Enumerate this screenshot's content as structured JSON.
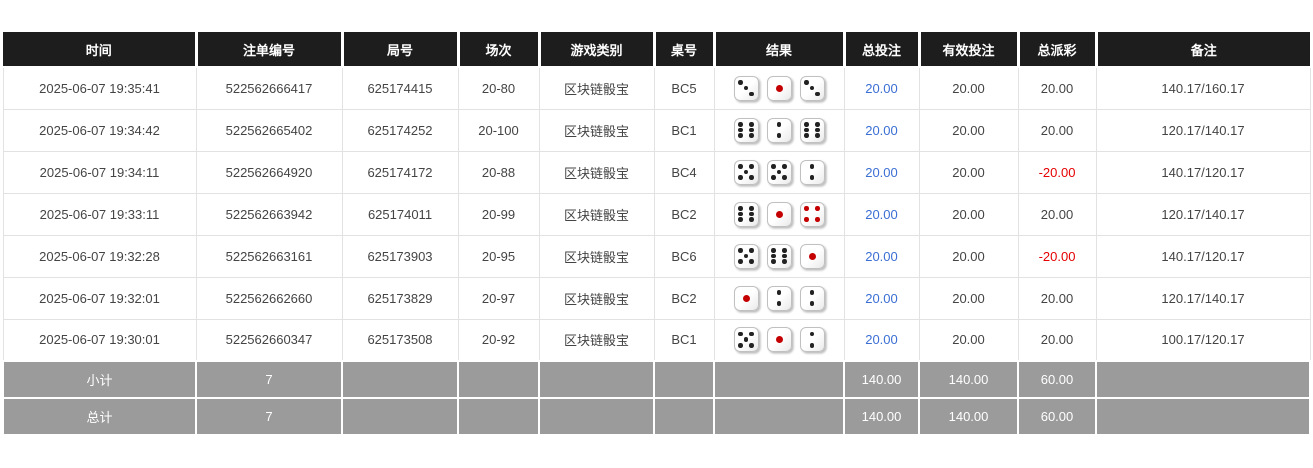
{
  "colors": {
    "header_bg": "#1d1d1d",
    "header_text": "#ffffff",
    "body_text": "#444444",
    "bet_link_blue": "#3b6fd4",
    "negative_red": "#e60000",
    "summary_bg": "#9b9b9b",
    "summary_text": "#ffffff",
    "row_border": "#e2e2e2",
    "die_pip_black": "#222222",
    "die_pip_red": "#c40000"
  },
  "table": {
    "headers": [
      "时间",
      "注单编号",
      "局号",
      "场次",
      "游戏类别",
      "桌号",
      "结果",
      "总投注",
      "有效投注",
      "总派彩",
      "备注"
    ],
    "rows": [
      {
        "time": "2025-06-07 19:35:41",
        "bet_id": "522562666417",
        "round_id": "625174415",
        "session": "20-80",
        "game_type": "区块链骰宝",
        "table_no": "BC5",
        "dice": [
          3,
          1,
          3
        ],
        "total_bet": "20.00",
        "valid_bet": "20.00",
        "payout": "20.00",
        "payout_negative": false,
        "remark": "140.17/160.17"
      },
      {
        "time": "2025-06-07 19:34:42",
        "bet_id": "522562665402",
        "round_id": "625174252",
        "session": "20-100",
        "game_type": "区块链骰宝",
        "table_no": "BC1",
        "dice": [
          6,
          2,
          6
        ],
        "total_bet": "20.00",
        "valid_bet": "20.00",
        "payout": "20.00",
        "payout_negative": false,
        "remark": "120.17/140.17"
      },
      {
        "time": "2025-06-07 19:34:11",
        "bet_id": "522562664920",
        "round_id": "625174172",
        "session": "20-88",
        "game_type": "区块链骰宝",
        "table_no": "BC4",
        "dice": [
          5,
          5,
          2
        ],
        "total_bet": "20.00",
        "valid_bet": "20.00",
        "payout": "-20.00",
        "payout_negative": true,
        "remark": "140.17/120.17"
      },
      {
        "time": "2025-06-07 19:33:11",
        "bet_id": "522562663942",
        "round_id": "625174011",
        "session": "20-99",
        "game_type": "区块链骰宝",
        "table_no": "BC2",
        "dice": [
          6,
          1,
          4
        ],
        "total_bet": "20.00",
        "valid_bet": "20.00",
        "payout": "20.00",
        "payout_negative": false,
        "remark": "120.17/140.17"
      },
      {
        "time": "2025-06-07 19:32:28",
        "bet_id": "522562663161",
        "round_id": "625173903",
        "session": "20-95",
        "game_type": "区块链骰宝",
        "table_no": "BC6",
        "dice": [
          5,
          6,
          1
        ],
        "total_bet": "20.00",
        "valid_bet": "20.00",
        "payout": "-20.00",
        "payout_negative": true,
        "remark": "140.17/120.17"
      },
      {
        "time": "2025-06-07 19:32:01",
        "bet_id": "522562662660",
        "round_id": "625173829",
        "session": "20-97",
        "game_type": "区块链骰宝",
        "table_no": "BC2",
        "dice": [
          1,
          2,
          2
        ],
        "total_bet": "20.00",
        "valid_bet": "20.00",
        "payout": "20.00",
        "payout_negative": false,
        "remark": "120.17/140.17"
      },
      {
        "time": "2025-06-07 19:30:01",
        "bet_id": "522562660347",
        "round_id": "625173508",
        "session": "20-92",
        "game_type": "区块链骰宝",
        "table_no": "BC1",
        "dice": [
          5,
          1,
          2
        ],
        "total_bet": "20.00",
        "valid_bet": "20.00",
        "payout": "20.00",
        "payout_negative": false,
        "remark": "100.17/120.17"
      }
    ],
    "summary_rows": [
      {
        "label": "小计",
        "count": "7",
        "total_bet": "140.00",
        "valid_bet": "140.00",
        "payout": "60.00"
      },
      {
        "label": "总计",
        "count": "7",
        "total_bet": "140.00",
        "valid_bet": "140.00",
        "payout": "60.00"
      }
    ]
  }
}
